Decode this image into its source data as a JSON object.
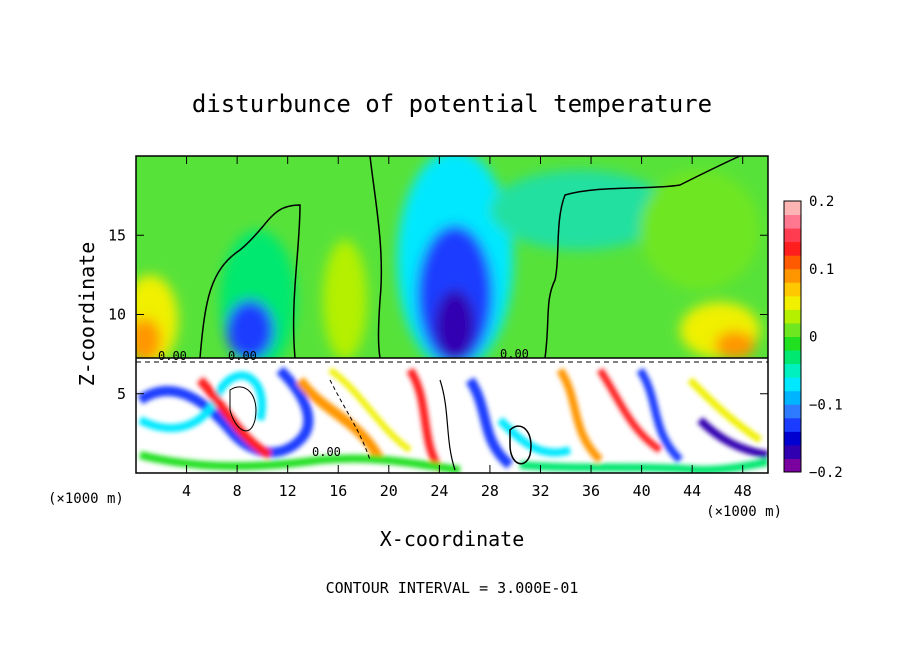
{
  "chart_data": {
    "type": "heatmap",
    "title": "disturbunce of potential temperature",
    "xlabel": "X-coordinate",
    "ylabel": "Z-coordinate",
    "x_unit_label": "(×1000 m)",
    "y_unit_label": "(×1000 m)",
    "xlim": [
      0,
      50
    ],
    "ylim": [
      0,
      20
    ],
    "x_ticks": [
      4,
      8,
      12,
      16,
      20,
      24,
      28,
      32,
      36,
      40,
      44,
      48
    ],
    "y_ticks": [
      5,
      10,
      15
    ],
    "colorbar": {
      "range": [
        -0.2,
        0.2
      ],
      "tick_values": [
        0.2,
        0.1,
        0,
        -0.1,
        -0.2
      ],
      "tick_labels": [
        "0.2",
        "0.1",
        "0",
        "−0.1",
        "−0.2"
      ],
      "colors": [
        "#7a00a0",
        "#3000b0",
        "#0000d0",
        "#1a3cff",
        "#2e7bff",
        "#00b4ff",
        "#00e8ff",
        "#00f0c0",
        "#00e870",
        "#20e020",
        "#6ee620",
        "#b4f000",
        "#f0f000",
        "#ffc800",
        "#ff9600",
        "#ff5a00",
        "#ff1e1e",
        "#ff3c50",
        "#ff7890",
        "#ffb4b4"
      ]
    },
    "contour_labels": [
      "0.00",
      "0.00",
      "0.00",
      "0.00"
    ],
    "contour_interval_text": "CONTOUR INTERVAL = 3.000E-01",
    "inversion_height_km": 7.3
  }
}
